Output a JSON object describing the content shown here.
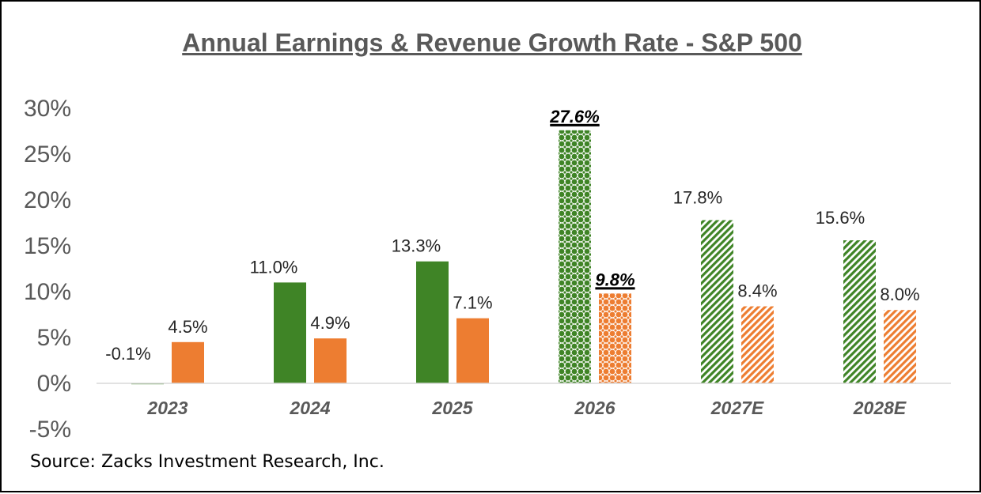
{
  "chart_data": {
    "type": "bar",
    "title": "Annual Earnings & Revenue Growth Rate - S&P 500",
    "source": "Source: Zacks Investment Research, Inc.",
    "categories": [
      "2023",
      "2024",
      "2025",
      "2026",
      "2027E",
      "2028E"
    ],
    "series": [
      {
        "values": [
          -0.1,
          11.0,
          13.3,
          27.6,
          17.8,
          15.6
        ],
        "labels": [
          "-0.1%",
          "11.0%",
          "13.3%",
          "27.6%",
          "17.8%",
          "15.6%"
        ],
        "color": "#3f8426"
      },
      {
        "values": [
          4.5,
          4.9,
          7.1,
          9.8,
          8.4,
          8.0
        ],
        "labels": [
          "4.5%",
          "4.9%",
          "7.1%",
          "9.8%",
          "8.4%",
          "8.0%"
        ],
        "color": "#ed7d31"
      }
    ],
    "bar_fill_styles": [
      "solid",
      "solid",
      "solid",
      "checkered",
      "diagonal-stripes",
      "diagonal-stripes"
    ],
    "emphasized_category": "2026",
    "yticks": [
      "-5%",
      "0%",
      "5%",
      "10%",
      "15%",
      "20%",
      "25%",
      "30%"
    ],
    "ylim": [
      -5,
      30
    ],
    "grid": false,
    "legend": "none"
  }
}
